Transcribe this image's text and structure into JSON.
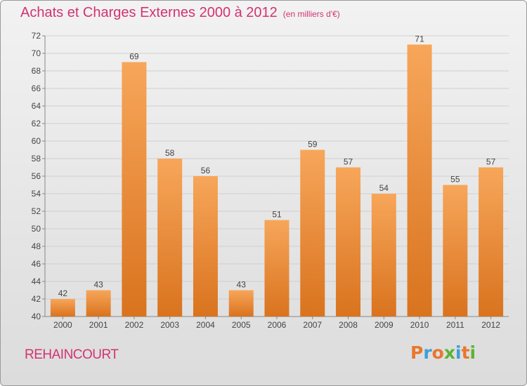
{
  "header": {
    "title": "Achats et Charges Externes 2000 à 2012",
    "subtitle": "(en milliers d'€)"
  },
  "footer": {
    "municipality": "REHAINCOURT",
    "brand": "Proxiti",
    "brand_colors": [
      "#e8772e",
      "#3aa0d8",
      "#e8772e",
      "#5bb431",
      "#3aa0d8",
      "#e8772e",
      "#5bb431"
    ]
  },
  "colors": {
    "title": "#d2336f",
    "bar_light": "#f7a65a",
    "bar_dark": "#d9731e",
    "grid": "#cfcfcf"
  },
  "chart_data": {
    "type": "bar",
    "categories": [
      "2000",
      "2001",
      "2002",
      "2003",
      "2004",
      "2005",
      "2006",
      "2007",
      "2008",
      "2009",
      "2010",
      "2011",
      "2012"
    ],
    "values": [
      42,
      43,
      69,
      58,
      56,
      43,
      51,
      59,
      57,
      54,
      71,
      55,
      57
    ],
    "ylim": [
      40,
      72
    ],
    "yticks": [
      40,
      42,
      44,
      46,
      48,
      50,
      52,
      54,
      56,
      58,
      60,
      62,
      64,
      66,
      68,
      70,
      72
    ],
    "data_labels": true,
    "grid": true
  }
}
